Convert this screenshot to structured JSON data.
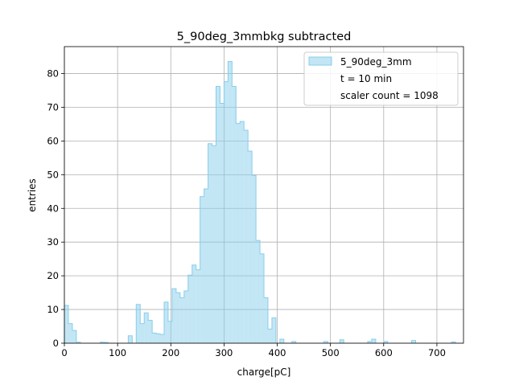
{
  "chart_data": {
    "type": "histogram",
    "title": "5_90deg_3mmbkg subtracted",
    "xlabel": "charge[pC]",
    "ylabel": "entries",
    "xlim": [
      0,
      750
    ],
    "ylim": [
      0,
      88
    ],
    "xticks": [
      0,
      100,
      200,
      300,
      400,
      500,
      600,
      700
    ],
    "yticks": [
      0,
      10,
      20,
      30,
      40,
      50,
      60,
      70,
      80
    ],
    "grid": true,
    "legend_position": "top-right",
    "legend": {
      "series_label": "5_90deg_3mm",
      "lines": [
        "t = 10 min",
        "scaler count = 1098"
      ]
    },
    "series": [
      {
        "name": "5_90deg_3mm",
        "color": "#87ceeb",
        "fill_opacity": 0.5,
        "bin_width": 7.5,
        "bins": [
          [
            0,
            11.2
          ],
          [
            7.5,
            5.8
          ],
          [
            15,
            3.8
          ],
          [
            22.5,
            0.3
          ],
          [
            67.5,
            0.3
          ],
          [
            75,
            0.2
          ],
          [
            120,
            2.2
          ],
          [
            135,
            11.5
          ],
          [
            142.5,
            5.8
          ],
          [
            150,
            9
          ],
          [
            157.5,
            6.8
          ],
          [
            165,
            3
          ],
          [
            172.5,
            2.8
          ],
          [
            180,
            2.6
          ],
          [
            187.5,
            12.2
          ],
          [
            195,
            6.5
          ],
          [
            202.5,
            16.2
          ],
          [
            210,
            15
          ],
          [
            217.5,
            13.5
          ],
          [
            225,
            15.5
          ],
          [
            232.5,
            20.2
          ],
          [
            240,
            23.2
          ],
          [
            247.5,
            21.8
          ],
          [
            255,
            43.5
          ],
          [
            262.5,
            45.8
          ],
          [
            270,
            59.2
          ],
          [
            277.5,
            58.6
          ],
          [
            285,
            76.2
          ],
          [
            292.5,
            71.2
          ],
          [
            300,
            77.6
          ],
          [
            307.5,
            83.6
          ],
          [
            315,
            76.2
          ],
          [
            322.5,
            65.2
          ],
          [
            330,
            65.8
          ],
          [
            337.5,
            63.2
          ],
          [
            345,
            57
          ],
          [
            352.5,
            49.8
          ],
          [
            360,
            30.5
          ],
          [
            367.5,
            26.5
          ],
          [
            375,
            13.5
          ],
          [
            382.5,
            4.2
          ],
          [
            390,
            7.5
          ],
          [
            405,
            1.2
          ],
          [
            427.5,
            0.5
          ],
          [
            487.5,
            0.5
          ],
          [
            517.5,
            1
          ],
          [
            570,
            0.5
          ],
          [
            577.5,
            1.2
          ],
          [
            600,
            0.5
          ],
          [
            652.5,
            0.8
          ],
          [
            727.5,
            0.4
          ]
        ]
      }
    ]
  }
}
